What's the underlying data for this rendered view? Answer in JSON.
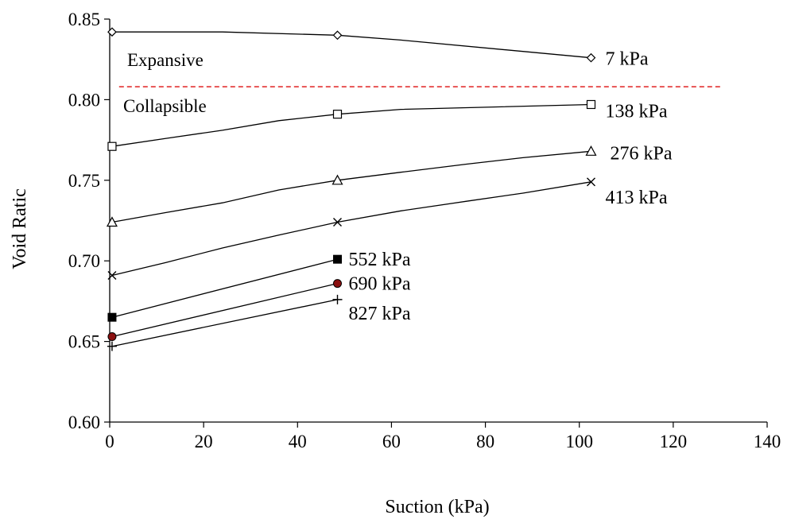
{
  "chart_data": {
    "type": "line",
    "xlabel": "Suction (kPa)",
    "ylabel": "Void Ratic",
    "xlim": [
      0,
      140
    ],
    "ylim": [
      0.6,
      0.85
    ],
    "xticks": [
      0,
      20,
      40,
      60,
      80,
      100,
      120,
      140
    ],
    "xtick_labels": [
      "0",
      "20",
      "40",
      "60",
      "80",
      "100",
      "120",
      "140"
    ],
    "yticks": [
      0.6,
      0.65,
      0.7,
      0.75,
      0.8,
      0.85
    ],
    "ytick_labels": [
      "0.60",
      "0.65",
      "0.70",
      "0.75",
      "0.80",
      "0.85"
    ],
    "grid": false,
    "legend": "none",
    "series": [
      {
        "name": "7 kPa",
        "marker": "diamond",
        "x": [
          0.5,
          48.5,
          102.5
        ],
        "y": [
          0.842,
          0.84,
          0.826
        ],
        "curve": [
          [
            0.5,
            0.842
          ],
          [
            24,
            0.842
          ],
          [
            48.5,
            0.84
          ],
          [
            62,
            0.837
          ],
          [
            102.5,
            0.826
          ]
        ]
      },
      {
        "name": "138 kPa",
        "marker": "square-open",
        "x": [
          0.5,
          48.5,
          102.5
        ],
        "y": [
          0.771,
          0.791,
          0.797
        ],
        "curve": [
          [
            0.5,
            0.771
          ],
          [
            12,
            0.776
          ],
          [
            24,
            0.781
          ],
          [
            36,
            0.787
          ],
          [
            48.5,
            0.791
          ],
          [
            62,
            0.794
          ],
          [
            102.5,
            0.797
          ]
        ]
      },
      {
        "name": "276 kPa",
        "marker": "triangle",
        "x": [
          0.5,
          48.5,
          102.5
        ],
        "y": [
          0.724,
          0.75,
          0.768
        ],
        "curve": [
          [
            0.5,
            0.724
          ],
          [
            12,
            0.73
          ],
          [
            24,
            0.736
          ],
          [
            36,
            0.744
          ],
          [
            48.5,
            0.75
          ],
          [
            62,
            0.755
          ],
          [
            76,
            0.76
          ],
          [
            88,
            0.764
          ],
          [
            102.5,
            0.768
          ]
        ]
      },
      {
        "name": "413 kPa",
        "marker": "x",
        "x": [
          0.5,
          48.5,
          102.5
        ],
        "y": [
          0.691,
          0.724,
          0.749
        ],
        "curve": [
          [
            0.5,
            0.691
          ],
          [
            12,
            0.699
          ],
          [
            24,
            0.708
          ],
          [
            36,
            0.716
          ],
          [
            48.5,
            0.724
          ],
          [
            62,
            0.731
          ],
          [
            76,
            0.737
          ],
          [
            88,
            0.742
          ],
          [
            102.5,
            0.749
          ]
        ]
      },
      {
        "name": "552 kPa",
        "marker": "square-filled",
        "x": [
          0.5,
          48.5
        ],
        "y": [
          0.665,
          0.701
        ],
        "curve": [
          [
            0.5,
            0.665
          ],
          [
            48.5,
            0.701
          ]
        ]
      },
      {
        "name": "690 kPa",
        "marker": "circle-red",
        "x": [
          0.5,
          48.5
        ],
        "y": [
          0.653,
          0.686
        ],
        "curve": [
          [
            0.5,
            0.653
          ],
          [
            48.5,
            0.686
          ]
        ]
      },
      {
        "name": "827 kPa",
        "marker": "plus",
        "x": [
          0.5,
          48.5
        ],
        "y": [
          0.647,
          0.676
        ],
        "curve": [
          [
            0.5,
            0.647
          ],
          [
            48.5,
            0.676
          ]
        ]
      }
    ],
    "threshold_line": {
      "y": 0.808,
      "x": [
        2,
        130
      ],
      "color": "#e02020",
      "style": "dashed"
    },
    "annotations": {
      "expansive": "Expansive",
      "collapsible": "Collapsible"
    },
    "colors": {
      "line": "#000000",
      "threshold": "#e02020",
      "marker_690_fill": "#8b1010"
    }
  }
}
